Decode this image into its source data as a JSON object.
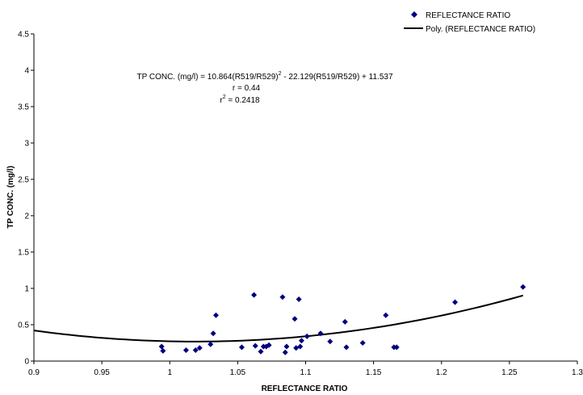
{
  "chart_data": {
    "type": "scatter",
    "xlabel": "REFLECTANCE RATIO",
    "ylabel": "TP CONC. (mg/l)",
    "xlim": [
      0.9,
      1.3
    ],
    "ylim": [
      0,
      4.5
    ],
    "x_ticks": [
      "0.9",
      "0.95",
      "1",
      "1.05",
      "1.1",
      "1.15",
      "1.2",
      "1.25",
      "1.3"
    ],
    "y_ticks": [
      "0",
      "0.5",
      "1",
      "1.5",
      "2",
      "2.5",
      "3",
      "3.5",
      "4",
      "4.5"
    ],
    "grid": false,
    "legend_position": "top-right",
    "series": [
      {
        "name": "REFLECTANCE RATIO",
        "marker": "diamond",
        "color": "#000080",
        "points": [
          [
            0.994,
            0.2
          ],
          [
            0.995,
            0.14
          ],
          [
            1.012,
            0.15
          ],
          [
            1.019,
            0.15
          ],
          [
            1.022,
            0.18
          ],
          [
            1.03,
            0.23
          ],
          [
            1.032,
            0.38
          ],
          [
            1.034,
            0.63
          ],
          [
            1.053,
            0.19
          ],
          [
            1.062,
            0.91
          ],
          [
            1.063,
            0.21
          ],
          [
            1.067,
            0.13
          ],
          [
            1.069,
            0.2
          ],
          [
            1.071,
            0.2
          ],
          [
            1.073,
            0.22
          ],
          [
            1.083,
            0.88
          ],
          [
            1.085,
            0.12
          ],
          [
            1.086,
            0.2
          ],
          [
            1.092,
            0.58
          ],
          [
            1.093,
            0.18
          ],
          [
            1.095,
            0.85
          ],
          [
            1.096,
            0.2
          ],
          [
            1.097,
            0.28
          ],
          [
            1.101,
            0.34
          ],
          [
            1.111,
            0.38
          ],
          [
            1.118,
            0.27
          ],
          [
            1.129,
            0.54
          ],
          [
            1.13,
            0.19
          ],
          [
            1.142,
            0.25
          ],
          [
            1.159,
            0.63
          ],
          [
            1.165,
            0.19
          ],
          [
            1.167,
            0.19
          ],
          [
            1.21,
            0.81
          ],
          [
            1.26,
            1.02
          ]
        ]
      },
      {
        "name": "Poly. (REFLECTANCE RATIO)",
        "type": "line",
        "color": "#000000",
        "coefficients": [
          10.864,
          -22.129,
          11.537
        ],
        "x_range": [
          0.9,
          1.26
        ]
      }
    ],
    "annotations": {
      "equation_main": "TP CONC. (mg/l) = 10.864(R519/R529)",
      "equation_sup1": "2",
      "equation_rest": " - 22.129(R519/R529) + 11.537",
      "r": "r = 0.44",
      "r2_prefix": "r",
      "r2_sup": "2",
      "r2_rest": " = 0.2418"
    }
  }
}
